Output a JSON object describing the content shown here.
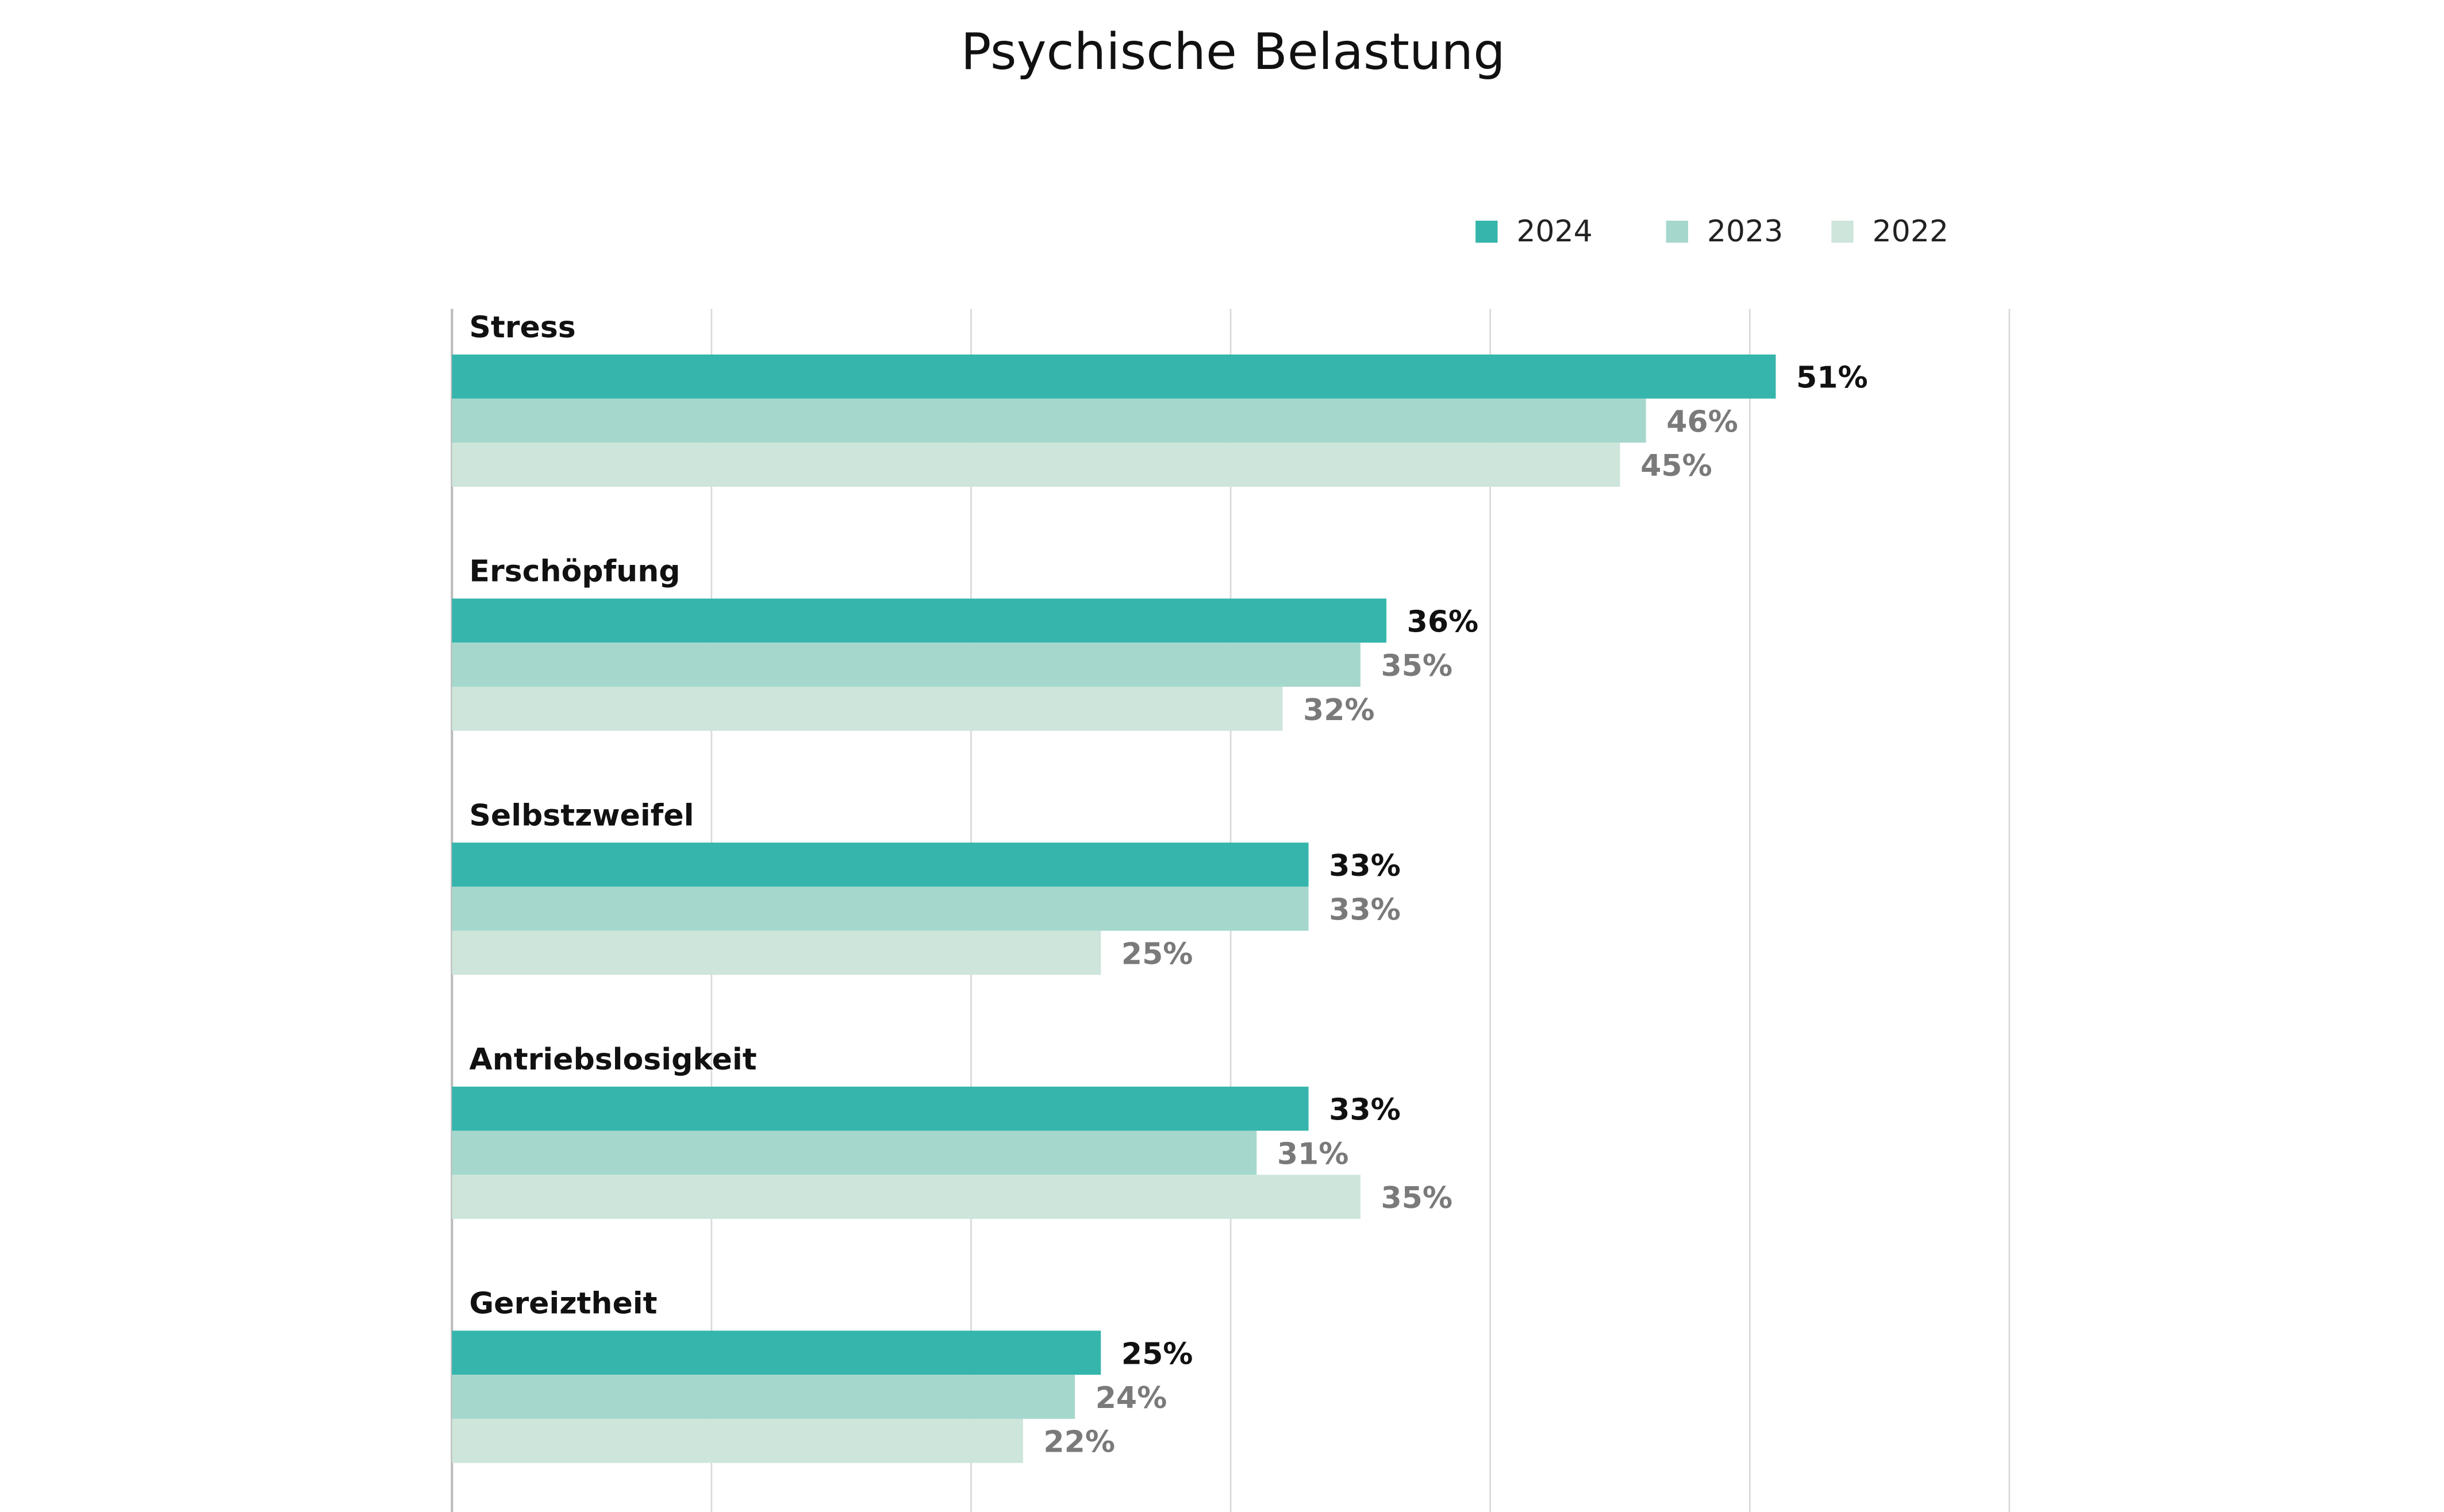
{
  "chart_data": {
    "type": "bar",
    "orientation": "horizontal",
    "title": "Psychische Belastung",
    "categories": [
      "Stress",
      "Erschöpfung",
      "Selbstzweifel",
      "Antriebslosigkeit",
      "Gereiztheit"
    ],
    "series": [
      {
        "name": "2024",
        "color": "#35b5ab",
        "values": [
          51,
          36,
          33,
          33,
          25
        ],
        "value_labels": [
          "51%",
          "36%",
          "33%",
          "33%",
          "25%"
        ]
      },
      {
        "name": "2023",
        "color": "#a5d7cd",
        "values": [
          46,
          35,
          33,
          31,
          24
        ],
        "value_labels": [
          "46%",
          "35%",
          "33%",
          "31%",
          "24%"
        ]
      },
      {
        "name": "2022",
        "color": "#cde5da",
        "values": [
          45,
          32,
          25,
          35,
          22
        ],
        "value_labels": [
          "45%",
          "32%",
          "25%",
          "35%",
          "22%"
        ]
      }
    ],
    "xlim": [
      0,
      60
    ],
    "xticks": [
      0,
      10,
      20,
      30,
      40,
      50,
      60
    ],
    "grid": true,
    "legend": "top-right"
  }
}
